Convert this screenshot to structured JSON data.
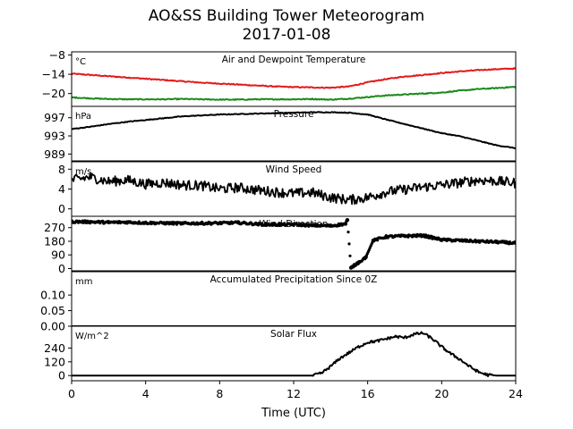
{
  "title": "AO&SS Building Tower Meteorogram",
  "subtitle": "2017-01-08",
  "chart_data": [
    {
      "type": "line",
      "title": "Air and Dewpoint Temperature",
      "ylabel": "°C",
      "ylim": [
        -24,
        -7
      ],
      "yticks": [
        -8,
        -14,
        -20
      ],
      "ytick_labels": [
        "−8",
        "−14",
        "−20"
      ],
      "series": [
        {
          "color": "#e31a1c",
          "x": [
            0,
            1,
            2,
            3,
            4,
            5,
            6,
            7,
            8,
            9,
            10,
            11,
            12,
            13,
            14,
            15,
            16,
            17,
            18,
            19,
            20,
            21,
            22,
            23,
            24
          ],
          "y": [
            -13.8,
            -14.2,
            -14.6,
            -15,
            -15.4,
            -15.8,
            -16.2,
            -16.6,
            -16.9,
            -17.2,
            -17.5,
            -17.8,
            -18,
            -18.1,
            -18.2,
            -17.8,
            -16.5,
            -15.5,
            -14.7,
            -14.2,
            -13.6,
            -13.1,
            -12.7,
            -12.4,
            -12.2
          ]
        },
        {
          "color": "#1a8a1a",
          "x": [
            0,
            1,
            2,
            3,
            4,
            5,
            6,
            7,
            8,
            9,
            10,
            11,
            12,
            13,
            14,
            15,
            16,
            17,
            18,
            19,
            20,
            21,
            22,
            23,
            24
          ],
          "y": [
            -21.2,
            -21.5,
            -21.7,
            -21.8,
            -21.8,
            -21.8,
            -21.7,
            -21.8,
            -21.9,
            -21.9,
            -21.8,
            -21.8,
            -21.8,
            -21.7,
            -21.9,
            -21.6,
            -21.1,
            -20.6,
            -20.3,
            -20,
            -19.7,
            -19.1,
            -18.6,
            -18.3,
            -17.9
          ]
        }
      ]
    },
    {
      "type": "line",
      "title": "Pressure",
      "ylabel": "hPa",
      "ylim": [
        987.5,
        999.5
      ],
      "yticks": [
        997,
        993,
        989
      ],
      "ytick_labels": [
        "997",
        "993",
        "989"
      ],
      "series": [
        {
          "color": "#000000",
          "x": [
            0,
            1,
            2,
            3,
            4,
            5,
            6,
            7,
            8,
            9,
            10,
            11,
            12,
            13,
            14,
            15,
            16,
            17,
            18,
            19,
            20,
            21,
            22,
            23,
            24
          ],
          "y": [
            994.5,
            995.0,
            995.6,
            996.1,
            996.5,
            996.9,
            997.3,
            997.5,
            997.7,
            997.8,
            997.9,
            998.0,
            998.1,
            998.2,
            998.2,
            998.1,
            997.7,
            996.6,
            995.6,
            994.6,
            993.6,
            992.9,
            991.9,
            990.9,
            990.3
          ]
        }
      ]
    },
    {
      "type": "line",
      "title": "Wind Speed",
      "ylabel": "m/s",
      "ylim": [
        -1.5,
        9.5
      ],
      "yticks": [
        8,
        4,
        0
      ],
      "ytick_labels": [
        "8",
        "4",
        "0"
      ],
      "series": [
        {
          "color": "#000000",
          "x": [
            0,
            1,
            2,
            3,
            4,
            5,
            6,
            7,
            8,
            9,
            10,
            11,
            12,
            13,
            14,
            15,
            16,
            17,
            18,
            19,
            20,
            21,
            22,
            23,
            24
          ],
          "y": [
            5.8,
            6.4,
            5.5,
            5.8,
            5,
            5.3,
            4.8,
            4.7,
            4,
            4.3,
            3.8,
            3.4,
            3.1,
            3.3,
            2.3,
            1.8,
            2.3,
            3.4,
            3.9,
            4.4,
            4.8,
            5.3,
            5.8,
            5.6,
            5.2
          ]
        }
      ]
    },
    {
      "type": "scatter",
      "title": "Wind Direction",
      "ylim": [
        -15,
        345
      ],
      "yticks": [
        270,
        180,
        90,
        0
      ],
      "ytick_labels": [
        "270",
        "180",
        "90",
        "0"
      ],
      "series": [
        {
          "color": "#000000",
          "x": [
            0,
            1,
            2,
            3,
            4,
            5,
            6,
            7,
            8,
            9,
            10,
            11,
            12,
            13,
            14,
            14.8,
            14.9,
            15.1,
            15.5,
            15.9,
            16.3,
            17,
            18,
            19,
            20,
            21,
            22,
            23,
            24
          ],
          "y": [
            310,
            308,
            305,
            306,
            302,
            300,
            298,
            299,
            300,
            303,
            294,
            290,
            291,
            285,
            282,
            295,
            320,
            5,
            40,
            75,
            185,
            210,
            215,
            218,
            190,
            185,
            180,
            175,
            168
          ]
        }
      ]
    },
    {
      "type": "line",
      "title": "Accumulated Precipitation Since 0Z",
      "ylabel": "mm",
      "ylim": [
        0,
        0.175
      ],
      "yticks": [
        0.1,
        0.05,
        0.0
      ],
      "ytick_labels": [
        "0.10",
        "0.05",
        "0.00"
      ],
      "series": [
        {
          "color": "#000000",
          "x": [
            0,
            24
          ],
          "y": [
            0,
            0
          ]
        }
      ]
    },
    {
      "type": "line",
      "title": "Solar Flux",
      "ylabel": "W/m^2",
      "ylim": [
        -45,
        430
      ],
      "yticks": [
        240,
        120,
        0
      ],
      "ytick_labels": [
        "240",
        "120",
        "0"
      ],
      "series": [
        {
          "color": "#000000",
          "x": [
            0,
            13,
            13.5,
            14,
            14.5,
            15,
            15.5,
            16,
            16.5,
            17,
            17.5,
            18,
            18.5,
            19,
            19.5,
            20,
            20.5,
            21,
            21.5,
            22,
            22.5,
            23,
            24
          ],
          "y": [
            0,
            0,
            20,
            80,
            150,
            200,
            250,
            290,
            300,
            320,
            340,
            330,
            360,
            370,
            320,
            250,
            190,
            140,
            80,
            30,
            5,
            0,
            0
          ]
        }
      ]
    }
  ],
  "xaxis": {
    "label": "Time (UTC)",
    "xlim": [
      0,
      24
    ],
    "ticks": [
      0,
      4,
      8,
      12,
      16,
      20,
      24
    ],
    "tick_labels": [
      "0",
      "4",
      "8",
      "12",
      "16",
      "20",
      "24"
    ]
  }
}
